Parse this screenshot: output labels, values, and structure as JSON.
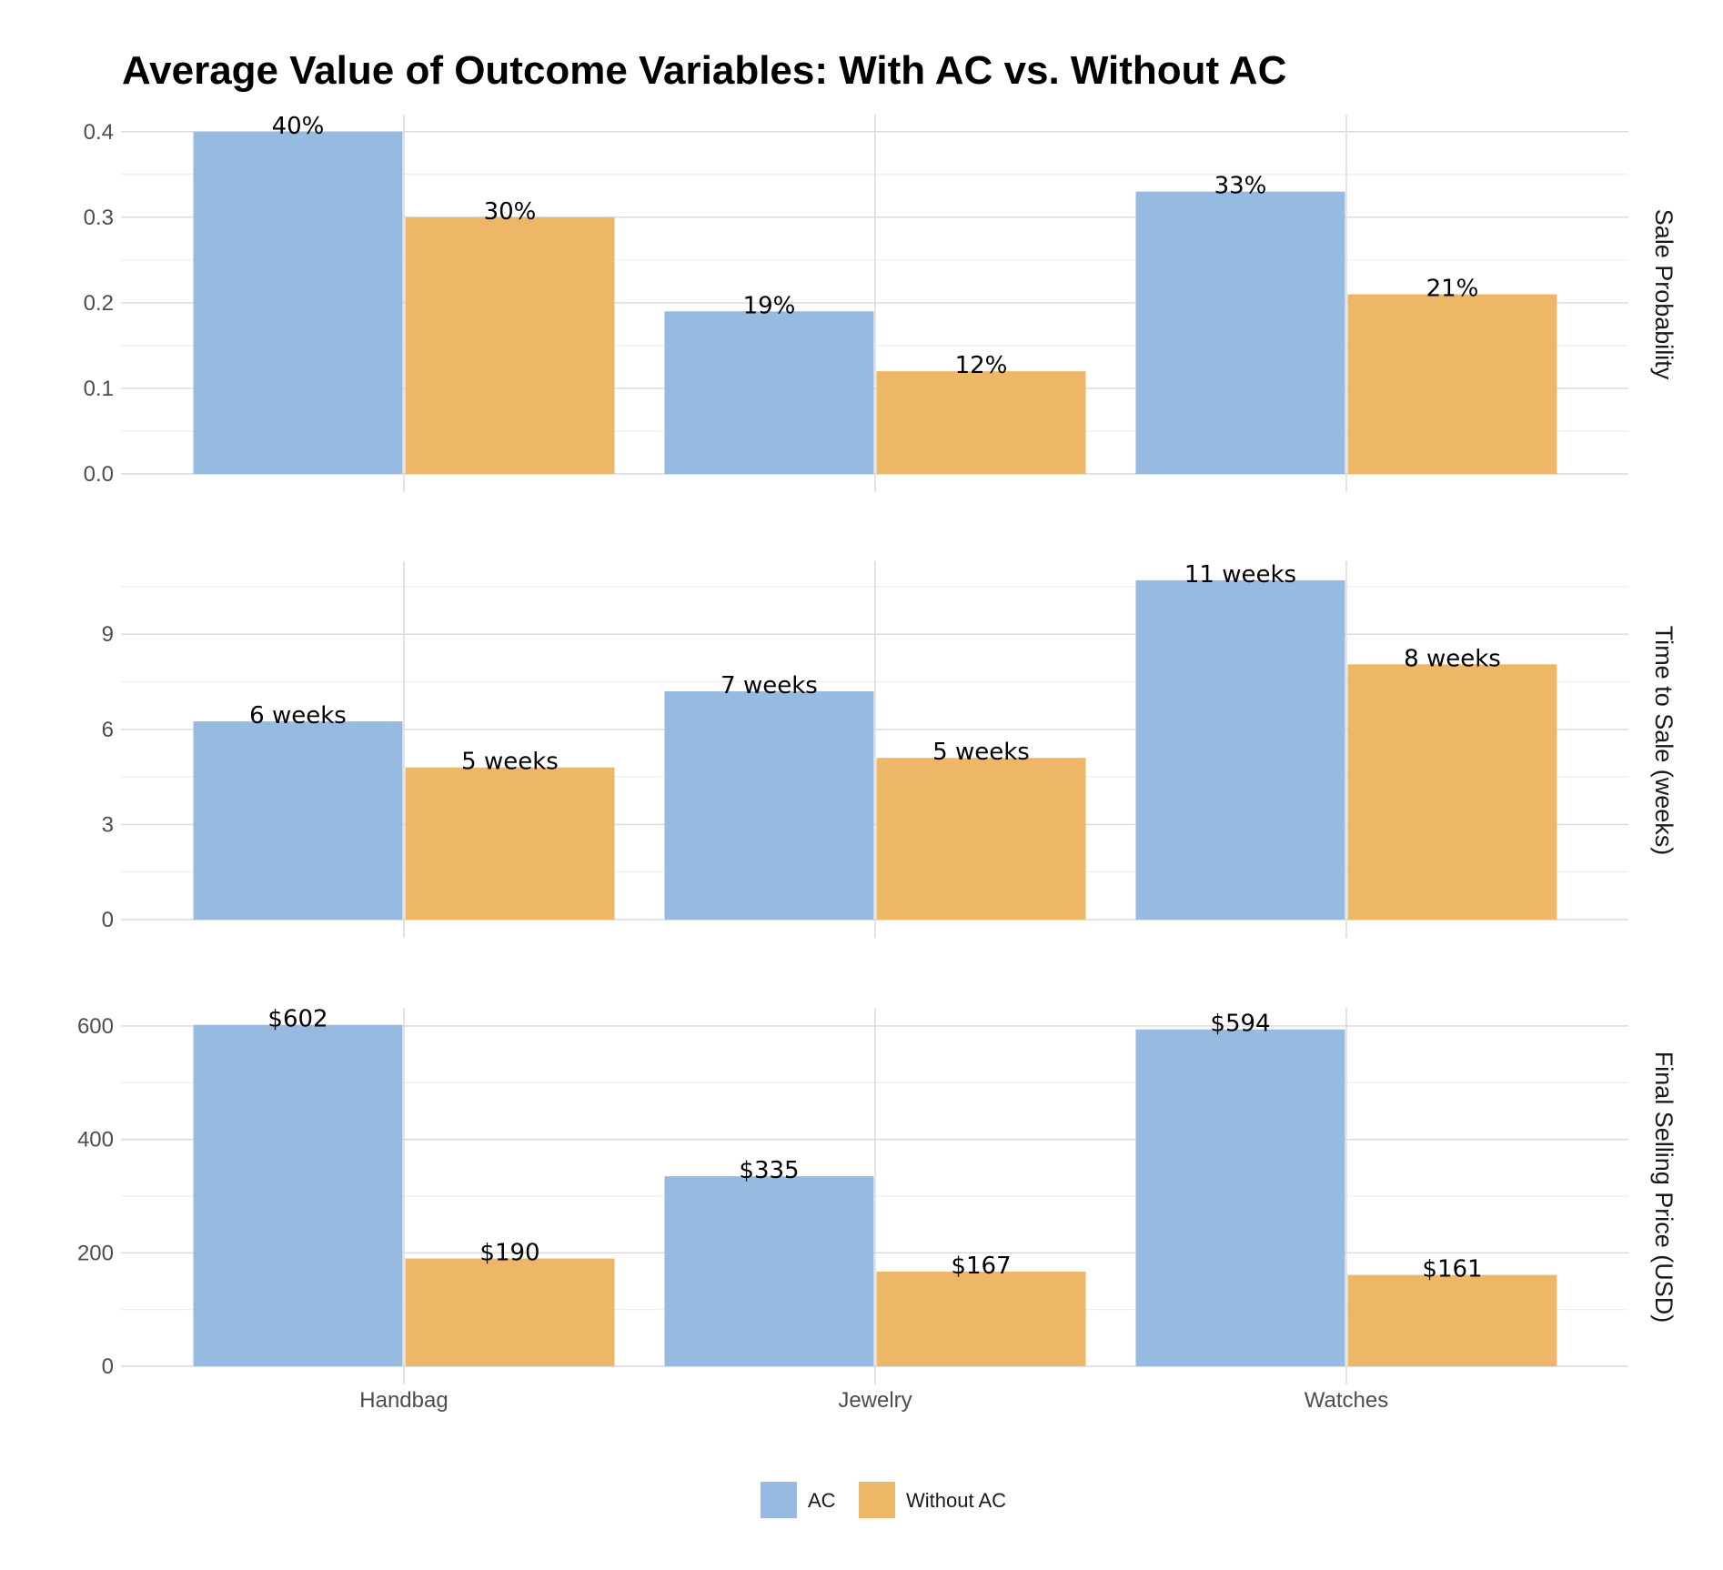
{
  "chart_data": {
    "type": "bar",
    "title": "Average Value of Outcome Variables: With AC vs. Without AC",
    "categories": [
      "Handbag",
      "Jewelry",
      "Watches"
    ],
    "legend": {
      "position": "bottom",
      "entries": [
        {
          "name": "AC",
          "color": "#97BAE0"
        },
        {
          "name": "Without AC",
          "color": "#EEB768"
        }
      ]
    },
    "facets": [
      {
        "strip": "Sale Probability",
        "ylim": [
          0,
          0.42
        ],
        "yticks": [
          0,
          0.1,
          0.2,
          0.3,
          0.4
        ],
        "ytick_labels": [
          "0.0",
          "0.1",
          "0.2",
          "0.3",
          "0.4"
        ],
        "series": [
          {
            "name": "AC",
            "values": [
              0.4,
              0.19,
              0.33
            ],
            "labels": [
              "40%",
              "19%",
              "33%"
            ]
          },
          {
            "name": "Without AC",
            "values": [
              0.3,
              0.12,
              0.21
            ],
            "labels": [
              "30%",
              "12%",
              "21%"
            ]
          }
        ]
      },
      {
        "strip": "Time to Sale (weeks)",
        "ylim": [
          0,
          11.3
        ],
        "yticks": [
          0,
          3,
          6,
          9
        ],
        "ytick_labels": [
          "0",
          "3",
          "6",
          "9"
        ],
        "series": [
          {
            "name": "AC",
            "values": [
              6.25,
              7.2,
              10.7
            ],
            "labels": [
              "6 weeks",
              "7 weeks",
              "11 weeks"
            ]
          },
          {
            "name": "Without AC",
            "values": [
              4.8,
              5.1,
              8.05
            ],
            "labels": [
              "5 weeks",
              "5 weeks",
              "8 weeks"
            ]
          }
        ]
      },
      {
        "strip": "Final Selling Price (USD)",
        "ylim": [
          0,
          632
        ],
        "yticks": [
          0,
          200,
          400,
          600
        ],
        "ytick_labels": [
          "0",
          "200",
          "400",
          "600"
        ],
        "series": [
          {
            "name": "AC",
            "values": [
              602,
              335,
              594
            ],
            "labels": [
              "$602",
              "$335",
              "$594"
            ]
          },
          {
            "name": "Without AC",
            "values": [
              190,
              167,
              161
            ],
            "labels": [
              "$190",
              "$167",
              "$161"
            ]
          }
        ]
      }
    ]
  }
}
